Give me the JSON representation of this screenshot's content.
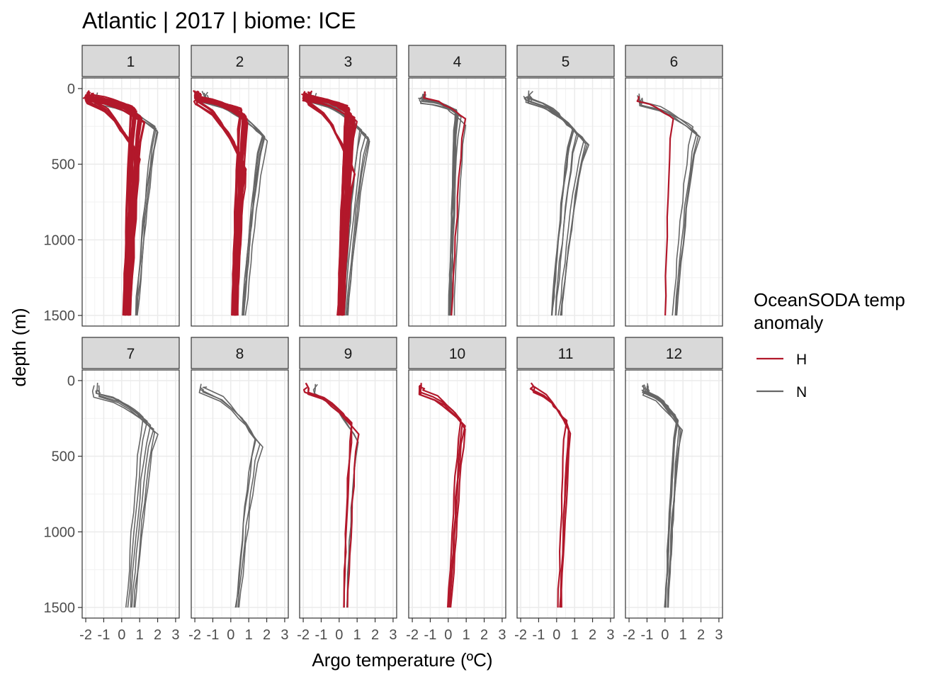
{
  "title": "Atlantic | 2017 | biome: ICE",
  "legend": {
    "title_line1": "OceanSODA temp",
    "title_line2": "anomaly",
    "items": [
      {
        "key": "H",
        "label": "H",
        "color": "#B2182B"
      },
      {
        "key": "N",
        "label": "N",
        "color": "#666666"
      }
    ]
  },
  "chart_data": {
    "type": "line",
    "title": "Atlantic | 2017 | biome: ICE",
    "xlabel": "Argo temperature (ºC)",
    "ylabel": "depth (m)",
    "xlim": [
      -2.2,
      3.2
    ],
    "ylim": [
      0,
      1500
    ],
    "y_reversed": true,
    "x_ticks": [
      "-2",
      "-1",
      "0",
      "1",
      "2",
      "3"
    ],
    "y_ticks": [
      "0",
      "500",
      "1000",
      "1500"
    ],
    "grid": true,
    "legend_position": "right",
    "facets": [
      {
        "label": "1",
        "series": [
          {
            "group": "H",
            "n": 20,
            "surface": -1.9,
            "mix_depth": 60,
            "peak": 0.9,
            "peak_depth": 170,
            "deep": 0.3,
            "spread": 0.35
          },
          {
            "group": "H",
            "n": 6,
            "surface": -1.9,
            "mix_depth": 90,
            "peak": 0.8,
            "peak_depth": 420,
            "deep": 0.3,
            "spread": 0.2
          },
          {
            "group": "N",
            "n": 4,
            "surface": -1.5,
            "mix_depth": 80,
            "peak": 1.9,
            "peak_depth": 260,
            "deep": 0.8,
            "spread": 0.3
          }
        ]
      },
      {
        "label": "2",
        "series": [
          {
            "group": "H",
            "n": 20,
            "surface": -1.9,
            "mix_depth": 70,
            "peak": 0.7,
            "peak_depth": 170,
            "deep": 0.2,
            "spread": 0.3
          },
          {
            "group": "H",
            "n": 6,
            "surface": -1.9,
            "mix_depth": 90,
            "peak": 0.7,
            "peak_depth": 500,
            "deep": 0.2,
            "spread": 0.2
          },
          {
            "group": "N",
            "n": 6,
            "surface": -1.5,
            "mix_depth": 80,
            "peak": 1.7,
            "peak_depth": 300,
            "deep": 0.6,
            "spread": 0.5
          }
        ]
      },
      {
        "label": "3",
        "series": [
          {
            "group": "H",
            "n": 18,
            "surface": -1.9,
            "mix_depth": 60,
            "peak": 0.7,
            "peak_depth": 170,
            "deep": 0.1,
            "spread": 0.3
          },
          {
            "group": "H",
            "n": 5,
            "surface": -1.9,
            "mix_depth": 90,
            "peak": 0.7,
            "peak_depth": 520,
            "deep": 0.1,
            "spread": 0.2
          },
          {
            "group": "N",
            "n": 6,
            "surface": -1.5,
            "mix_depth": 80,
            "peak": 1.4,
            "peak_depth": 300,
            "deep": 0.3,
            "spread": 0.4
          }
        ]
      },
      {
        "label": "4",
        "series": [
          {
            "group": "H",
            "n": 1,
            "surface": -1.6,
            "mix_depth": 80,
            "peak": 0.9,
            "peak_depth": 200,
            "deep": 0.2,
            "spread": 0
          },
          {
            "group": "N",
            "n": 9,
            "surface": -1.5,
            "mix_depth": 80,
            "peak": 0.7,
            "peak_depth": 200,
            "deep": 0.2,
            "spread": 0.3
          }
        ]
      },
      {
        "label": "5",
        "series": [
          {
            "group": "N",
            "n": 10,
            "surface": -1.7,
            "mix_depth": 80,
            "peak": 1.3,
            "peak_depth": 320,
            "deep": 0.0,
            "spread": 0.5
          }
        ]
      },
      {
        "label": "6",
        "series": [
          {
            "group": "H",
            "n": 1,
            "surface": -1.6,
            "mix_depth": 100,
            "peak": 0.4,
            "peak_depth": 200,
            "deep": 0.0,
            "spread": 0
          },
          {
            "group": "N",
            "n": 4,
            "surface": -1.6,
            "mix_depth": 100,
            "peak": 1.7,
            "peak_depth": 280,
            "deep": 0.5,
            "spread": 0.3
          }
        ]
      },
      {
        "label": "7",
        "series": [
          {
            "group": "N",
            "n": 6,
            "surface": -1.5,
            "mix_depth": 100,
            "peak": 1.6,
            "peak_depth": 300,
            "deep": 0.5,
            "spread": 0.4
          }
        ]
      },
      {
        "label": "8",
        "series": [
          {
            "group": "N",
            "n": 4,
            "surface": -1.7,
            "mix_depth": 60,
            "peak": 1.6,
            "peak_depth": 420,
            "deep": 0.4,
            "spread": 0.4
          }
        ]
      },
      {
        "label": "9",
        "series": [
          {
            "group": "H",
            "n": 3,
            "surface": -1.8,
            "mix_depth": 80,
            "peak": 0.8,
            "peak_depth": 300,
            "deep": 0.3,
            "spread": 0.3
          },
          {
            "group": "N",
            "n": 2,
            "surface": -1.5,
            "mix_depth": 80,
            "peak": 1.0,
            "peak_depth": 400,
            "deep": 0.4,
            "spread": 0.3
          }
        ]
      },
      {
        "label": "10",
        "series": [
          {
            "group": "H",
            "n": 4,
            "surface": -1.6,
            "mix_depth": 80,
            "peak": 0.9,
            "peak_depth": 300,
            "deep": 0.1,
            "spread": 0.3
          }
        ]
      },
      {
        "label": "11",
        "series": [
          {
            "group": "H",
            "n": 4,
            "surface": -1.5,
            "mix_depth": 60,
            "peak": 0.7,
            "peak_depth": 320,
            "deep": 0.2,
            "spread": 0.2
          }
        ]
      },
      {
        "label": "12",
        "series": [
          {
            "group": "N",
            "n": 10,
            "surface": -1.2,
            "mix_depth": 80,
            "peak": 0.8,
            "peak_depth": 300,
            "deep": 0.1,
            "spread": 0.2
          }
        ]
      }
    ]
  }
}
